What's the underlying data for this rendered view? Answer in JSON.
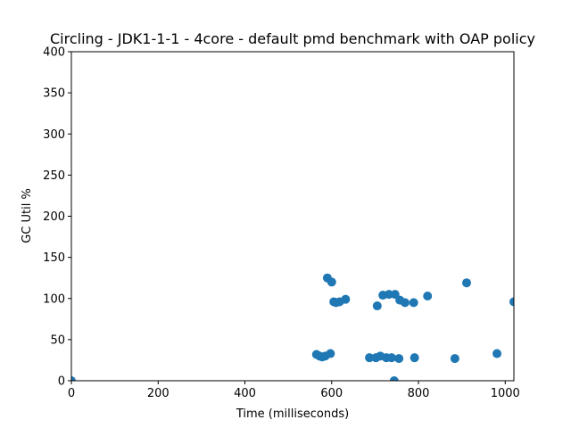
{
  "chart_data": {
    "type": "scatter",
    "title": "Circling - JDK1-1-1 - 4core -  default pmd benchmark with OAP policy",
    "xlabel": "Time (milliseconds)",
    "ylabel": "GC Util %",
    "xlim": [
      0,
      1020
    ],
    "ylim": [
      0,
      400
    ],
    "xticks": [
      0,
      200,
      400,
      600,
      800,
      1000
    ],
    "yticks": [
      0,
      50,
      100,
      150,
      200,
      250,
      300,
      350,
      400
    ],
    "grid": false,
    "colors": {
      "marker": "#1f77b4"
    },
    "series": [
      {
        "points": [
          [
            0,
            0
          ],
          [
            565,
            32
          ],
          [
            572,
            30
          ],
          [
            578,
            29
          ],
          [
            585,
            30
          ],
          [
            590,
            125
          ],
          [
            597,
            33
          ],
          [
            600,
            120
          ],
          [
            605,
            96
          ],
          [
            610,
            95
          ],
          [
            618,
            96
          ],
          [
            632,
            99
          ],
          [
            687,
            28
          ],
          [
            702,
            28
          ],
          [
            705,
            91
          ],
          [
            712,
            30
          ],
          [
            718,
            104
          ],
          [
            726,
            28
          ],
          [
            732,
            105
          ],
          [
            738,
            28
          ],
          [
            744,
            0
          ],
          [
            746,
            105
          ],
          [
            755,
            27
          ],
          [
            757,
            98
          ],
          [
            769,
            95
          ],
          [
            789,
            95
          ],
          [
            791,
            28
          ],
          [
            821,
            103
          ],
          [
            884,
            27
          ],
          [
            911,
            119
          ],
          [
            981,
            33
          ],
          [
            1020,
            96
          ]
        ]
      }
    ]
  }
}
